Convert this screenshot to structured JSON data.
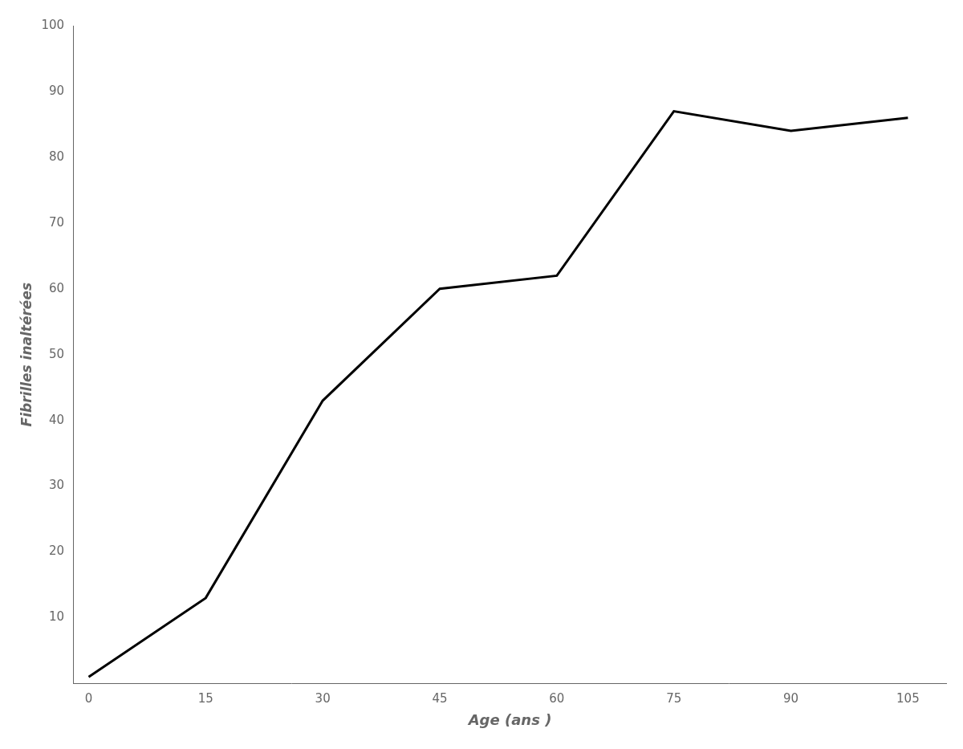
{
  "chart_data": {
    "type": "line",
    "x": [
      0,
      15,
      30,
      45,
      60,
      75,
      90,
      105
    ],
    "values": [
      1,
      13,
      43,
      60,
      62,
      87,
      84,
      86
    ],
    "xlabel": "Age (ans )",
    "ylabel": "Fibrilles inaltérées",
    "xlim": [
      -2,
      110
    ],
    "ylim": [
      0,
      100
    ],
    "xticks": [
      0,
      15,
      30,
      45,
      60,
      75,
      90,
      105
    ],
    "yticks": [
      10,
      20,
      30,
      40,
      50,
      60,
      70,
      80,
      90,
      100
    ],
    "color": "#000000",
    "grid": false
  }
}
